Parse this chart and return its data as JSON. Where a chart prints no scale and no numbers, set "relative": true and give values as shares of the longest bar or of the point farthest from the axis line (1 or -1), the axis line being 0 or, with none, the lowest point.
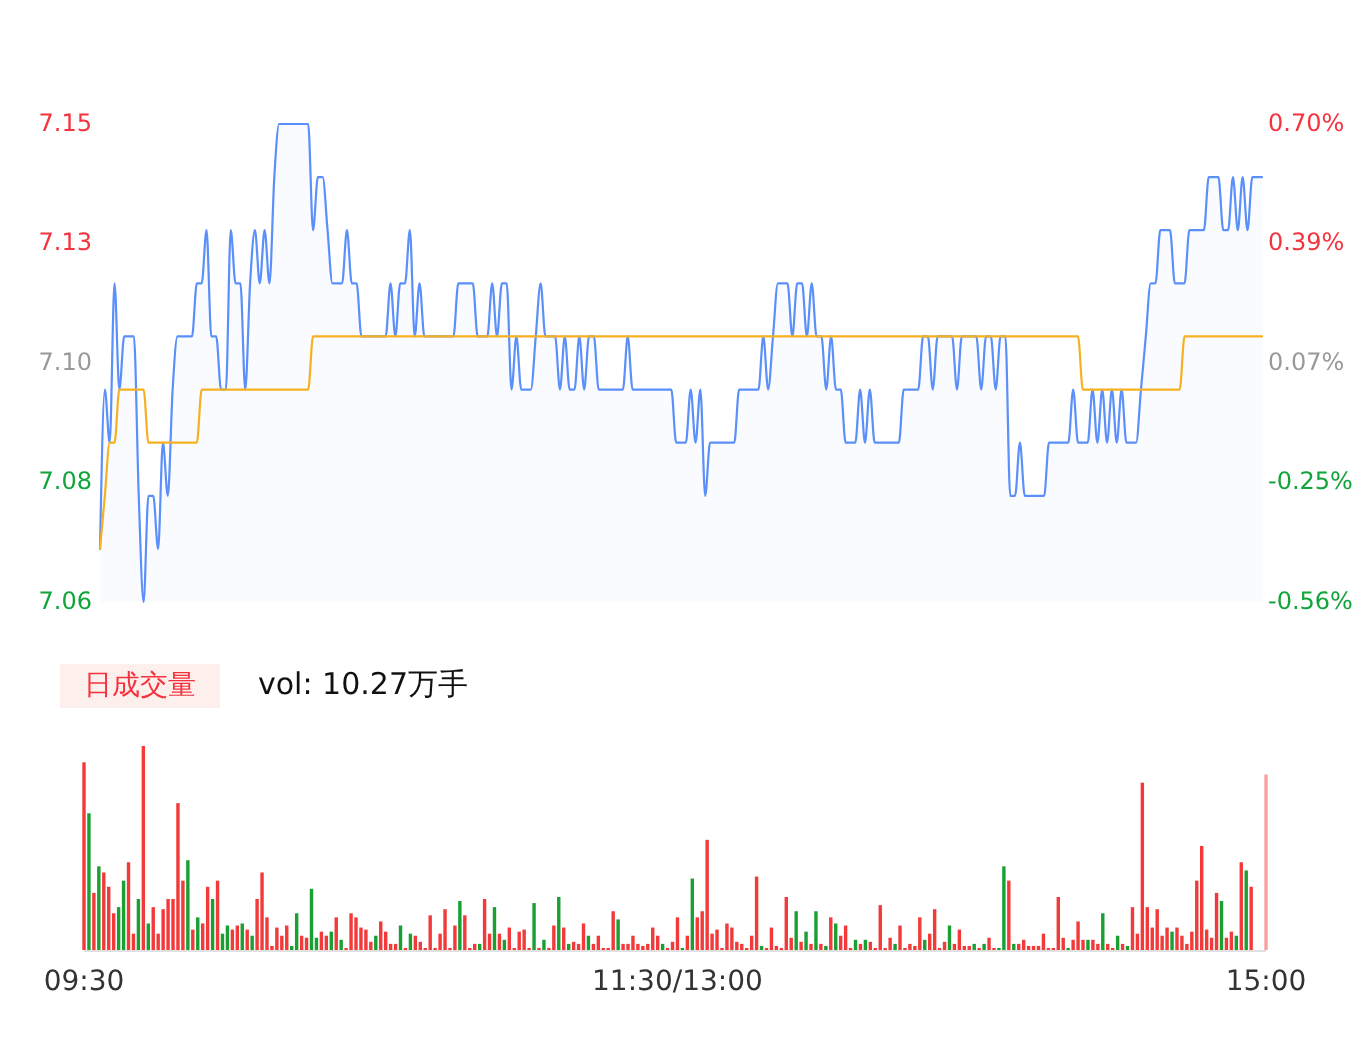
{
  "chart_data": [
    {
      "type": "line",
      "tick_labels": "y",
      "categories": [
        null,
        null,
        null,
        null,
        null,
        null,
        null,
        null,
        null,
        null,
        null,
        null,
        null,
        null,
        null,
        null,
        null,
        null,
        null,
        null,
        null,
        null,
        null,
        null,
        null,
        null,
        null,
        null,
        null,
        null,
        null,
        null,
        null,
        null,
        null,
        null,
        null,
        null,
        null,
        null,
        null,
        null,
        null,
        null,
        null,
        null,
        null,
        null,
        null,
        null,
        null,
        null,
        null,
        null,
        null,
        null,
        null,
        null,
        null,
        null,
        null,
        null,
        null,
        null,
        null,
        null,
        null,
        null,
        null,
        null,
        null,
        null,
        null,
        null,
        null,
        null,
        null,
        null,
        null,
        null,
        null,
        null,
        null,
        null,
        null,
        null,
        null,
        null,
        null,
        null,
        null,
        null,
        null,
        null,
        null,
        null,
        null,
        null,
        null,
        null,
        null,
        null,
        null,
        null,
        null,
        null,
        null,
        null,
        null,
        null,
        null,
        null,
        null,
        null,
        null,
        null,
        null,
        null,
        null,
        null,
        null,
        null,
        null,
        null,
        null,
        null,
        null,
        null,
        null,
        null,
        null,
        null,
        null,
        null,
        null,
        null,
        null,
        null,
        null,
        null,
        null,
        null,
        null,
        null,
        null,
        null,
        null,
        null,
        null,
        null,
        null,
        null,
        null,
        null,
        null,
        null,
        null,
        null,
        null,
        null,
        null,
        null,
        null,
        null,
        null,
        null,
        null,
        null,
        null,
        null,
        null,
        null,
        null,
        null,
        null,
        null,
        null,
        null,
        null,
        null,
        null,
        null,
        null,
        null,
        null,
        null,
        null,
        null,
        null,
        null,
        null,
        null,
        null,
        null,
        null,
        null,
        null,
        null,
        null,
        null,
        null,
        null,
        null,
        null,
        null,
        null,
        null,
        null,
        null,
        null,
        null,
        null,
        null,
        null,
        null,
        null,
        null,
        null,
        null,
        null,
        null,
        null,
        null,
        null,
        null,
        null,
        null,
        null,
        null,
        null,
        null,
        null,
        null,
        null,
        null,
        null,
        null,
        null,
        null,
        null,
        null
      ],
      "ylim": [
        7.06,
        7.15
      ],
      "yticks": [
        7.15,
        {
          "value": 7.1275,
          "label": "7.13"
        },
        {
          "value": 7.105,
          "label": "7.10"
        },
        {
          "value": 7.0825,
          "label": "7.08"
        },
        7.06
      ],
      "y2lim": [
        -0.56,
        0.7
      ],
      "y2ticks": [
        {
          "value": 0.7,
          "label": "0.70%"
        },
        {
          "value": 0.385,
          "label": "0.39%"
        },
        {
          "value": 0.07,
          "label": "0.07%"
        },
        {
          "value": -0.245,
          "label": "-0.25%"
        },
        {
          "value": -0.56,
          "label": "-0.56%"
        }
      ],
      "series": [
        {
          "type": "area",
          "color": "#5b8ff9",
          "values": [
            7.07,
            7.1,
            7.09,
            7.12,
            7.1,
            7.11,
            7.11,
            7.11,
            7.08,
            7.06,
            7.08,
            7.08,
            7.07,
            7.09,
            7.08,
            7.1,
            7.11,
            7.11,
            7.11,
            7.11,
            7.12,
            7.12,
            7.13,
            7.11,
            7.11,
            7.1,
            7.1,
            7.13,
            7.12,
            7.12,
            7.1,
            7.12,
            7.13,
            7.12,
            7.13,
            7.12,
            7.14,
            7.15,
            7.15,
            7.15,
            7.15,
            7.15,
            7.15,
            7.15,
            7.13,
            7.14,
            7.14,
            7.13,
            7.12,
            7.12,
            7.12,
            7.13,
            7.12,
            7.12,
            7.11,
            7.11,
            7.11,
            7.11,
            7.11,
            7.11,
            7.12,
            7.11,
            7.12,
            7.12,
            7.13,
            7.11,
            7.12,
            7.11,
            7.11,
            7.11,
            7.11,
            7.11,
            7.11,
            7.11,
            7.12,
            7.12,
            7.12,
            7.12,
            7.11,
            7.11,
            7.11,
            7.12,
            7.11,
            7.12,
            7.12,
            7.1,
            7.11,
            7.1,
            7.1,
            7.1,
            7.11,
            7.12,
            7.11,
            7.11,
            7.11,
            7.1,
            7.11,
            7.1,
            7.1,
            7.11,
            7.1,
            7.11,
            7.11,
            7.1,
            7.1,
            7.1,
            7.1,
            7.1,
            7.1,
            7.11,
            7.1,
            7.1,
            7.1,
            7.1,
            7.1,
            7.1,
            7.1,
            7.1,
            7.1,
            7.09,
            7.09,
            7.09,
            7.1,
            7.09,
            7.1,
            7.08,
            7.09,
            7.09,
            7.09,
            7.09,
            7.09,
            7.09,
            7.1,
            7.1,
            7.1,
            7.1,
            7.1,
            7.11,
            7.1,
            7.11,
            7.12,
            7.12,
            7.12,
            7.11,
            7.12,
            7.12,
            7.11,
            7.12,
            7.11,
            7.11,
            7.1,
            7.11,
            7.1,
            7.1,
            7.09,
            7.09,
            7.09,
            7.1,
            7.09,
            7.1,
            7.09,
            7.09,
            7.09,
            7.09,
            7.09,
            7.09,
            7.1,
            7.1,
            7.1,
            7.1,
            7.11,
            7.11,
            7.1,
            7.11,
            7.11,
            7.11,
            7.11,
            7.1,
            7.11,
            7.11,
            7.11,
            7.11,
            7.1,
            7.11,
            7.11,
            7.1,
            7.11,
            7.11,
            7.08,
            7.08,
            7.09,
            7.08,
            7.08,
            7.08,
            7.08,
            7.08,
            7.09,
            7.09,
            7.09,
            7.09,
            7.09,
            7.1,
            7.09,
            7.09,
            7.09,
            7.1,
            7.09,
            7.1,
            7.09,
            7.1,
            7.09,
            7.1,
            7.09,
            7.09,
            7.09,
            7.1,
            7.11,
            7.12,
            7.12,
            7.13,
            7.13,
            7.13,
            7.12,
            7.12,
            7.12,
            7.13,
            7.13,
            7.13,
            7.13,
            7.14,
            7.14,
            7.14,
            7.13,
            7.13,
            7.14,
            7.13,
            7.14,
            7.13,
            7.14,
            7.14,
            7.14
          ]
        },
        {
          "type": "line",
          "color": "#f5b121",
          "values": [
            7.07,
            7.08,
            7.09,
            7.09,
            7.1,
            7.1,
            7.1,
            7.1,
            7.1,
            7.1,
            7.09,
            7.09,
            7.09,
            7.09,
            7.09,
            7.09,
            7.09,
            7.09,
            7.09,
            7.09,
            7.09,
            7.1,
            7.1,
            7.1,
            7.1,
            7.1,
            7.1,
            7.1,
            7.1,
            7.1,
            7.1,
            7.1,
            7.1,
            7.1,
            7.1,
            7.1,
            7.1,
            7.1,
            7.1,
            7.1,
            7.1,
            7.1,
            7.1,
            7.1,
            7.11,
            7.11,
            7.11,
            7.11,
            7.11,
            7.11,
            7.11,
            7.11,
            7.11,
            7.11,
            7.11,
            7.11,
            7.11,
            7.11,
            7.11,
            7.11,
            7.11,
            7.11,
            7.11,
            7.11,
            7.11,
            7.11,
            7.11,
            7.11,
            7.11,
            7.11,
            7.11,
            7.11,
            7.11,
            7.11,
            7.11,
            7.11,
            7.11,
            7.11,
            7.11,
            7.11,
            7.11,
            7.11,
            7.11,
            7.11,
            7.11,
            7.11,
            7.11,
            7.11,
            7.11,
            7.11,
            7.11,
            7.11,
            7.11,
            7.11,
            7.11,
            7.11,
            7.11,
            7.11,
            7.11,
            7.11,
            7.11,
            7.11,
            7.11,
            7.11,
            7.11,
            7.11,
            7.11,
            7.11,
            7.11,
            7.11,
            7.11,
            7.11,
            7.11,
            7.11,
            7.11,
            7.11,
            7.11,
            7.11,
            7.11,
            7.11,
            7.11,
            7.11,
            7.11,
            7.11,
            7.11,
            7.11,
            7.11,
            7.11,
            7.11,
            7.11,
            7.11,
            7.11,
            7.11,
            7.11,
            7.11,
            7.11,
            7.11,
            7.11,
            7.11,
            7.11,
            7.11,
            7.11,
            7.11,
            7.11,
            7.11,
            7.11,
            7.11,
            7.11,
            7.11,
            7.11,
            7.11,
            7.11,
            7.11,
            7.11,
            7.11,
            7.11,
            7.11,
            7.11,
            7.11,
            7.11,
            7.11,
            7.11,
            7.11,
            7.11,
            7.11,
            7.11,
            7.11,
            7.11,
            7.11,
            7.11,
            7.11,
            7.11,
            7.11,
            7.11,
            7.11,
            7.11,
            7.11,
            7.11,
            7.11,
            7.11,
            7.11,
            7.11,
            7.11,
            7.11,
            7.11,
            7.11,
            7.11,
            7.11,
            7.11,
            7.11,
            7.11,
            7.11,
            7.11,
            7.11,
            7.11,
            7.11,
            7.11,
            7.11,
            7.11,
            7.11,
            7.11,
            7.11,
            7.11,
            7.1,
            7.1,
            7.1,
            7.1,
            7.1,
            7.1,
            7.1,
            7.1,
            7.1,
            7.1,
            7.1,
            7.1,
            7.1,
            7.1,
            7.1,
            7.1,
            7.1,
            7.1,
            7.1,
            7.1,
            7.1,
            7.11,
            7.11,
            7.11,
            7.11,
            7.11,
            7.11,
            7.11,
            7.11,
            7.11,
            7.11,
            7.11,
            7.11,
            7.11,
            7.11,
            7.11,
            7.11,
            7.11
          ]
        }
      ]
    },
    {
      "type": "bar",
      "title": "日成交量",
      "subtitle": "vol: 10.27万手",
      "relative": true,
      "categories": [
        "09:30",
        null,
        null,
        null,
        null,
        null,
        null,
        null,
        null,
        null,
        null,
        null,
        null,
        null,
        null,
        null,
        null,
        null,
        null,
        null,
        null,
        null,
        null,
        null,
        null,
        null,
        null,
        null,
        null,
        null,
        null,
        null,
        null,
        null,
        null,
        null,
        null,
        null,
        null,
        null,
        null,
        null,
        null,
        null,
        null,
        null,
        null,
        null,
        null,
        null,
        null,
        null,
        null,
        null,
        null,
        null,
        null,
        null,
        null,
        null,
        null,
        null,
        null,
        null,
        null,
        null,
        null,
        null,
        null,
        null,
        null,
        null,
        null,
        null,
        null,
        null,
        null,
        null,
        null,
        null,
        null,
        null,
        null,
        null,
        null,
        null,
        null,
        null,
        null,
        null,
        null,
        null,
        null,
        null,
        null,
        null,
        null,
        null,
        null,
        null,
        null,
        null,
        null,
        null,
        null,
        null,
        null,
        null,
        null,
        null,
        null,
        null,
        null,
        null,
        null,
        null,
        null,
        null,
        null,
        null,
        "11:30/13:00",
        null,
        null,
        null,
        null,
        null,
        null,
        null,
        null,
        null,
        null,
        null,
        null,
        null,
        null,
        null,
        null,
        null,
        null,
        null,
        null,
        null,
        null,
        null,
        null,
        null,
        null,
        null,
        null,
        null,
        null,
        null,
        null,
        null,
        null,
        null,
        null,
        null,
        null,
        null,
        null,
        null,
        null,
        null,
        null,
        null,
        null,
        null,
        null,
        null,
        null,
        null,
        null,
        null,
        null,
        null,
        null,
        null,
        null,
        null,
        null,
        null,
        null,
        null,
        null,
        null,
        null,
        null,
        null,
        null,
        null,
        null,
        null,
        null,
        null,
        null,
        null,
        null,
        null,
        null,
        null,
        null,
        null,
        null,
        null,
        null,
        null,
        null,
        null,
        null,
        null,
        null,
        null,
        null,
        null,
        null,
        null,
        null,
        null,
        null,
        null,
        null,
        null,
        null,
        null,
        null,
        null,
        null,
        null,
        null,
        null,
        null,
        null,
        null,
        null,
        null,
        null,
        null,
        null,
        "15:00"
      ],
      "values": [
        0.92,
        0.67,
        0.28,
        0.41,
        0.38,
        0.31,
        0.18,
        0.21,
        0.34,
        0.43,
        0.08,
        0.25,
        1,
        0.13,
        0.21,
        0.08,
        0.2,
        0.25,
        0.25,
        0.72,
        0.34,
        0.44,
        0.1,
        0.16,
        0.13,
        0.31,
        0.25,
        0.34,
        0.08,
        0.12,
        0.1,
        0.12,
        0.13,
        0.1,
        0.07,
        0.25,
        0.38,
        0.16,
        0.02,
        0.11,
        0.07,
        0.12,
        0.02,
        0.18,
        0.07,
        0.06,
        0.3,
        0.06,
        0.09,
        0.07,
        0.09,
        0.16,
        0.05,
        0.01,
        0.18,
        0.16,
        0.11,
        0.1,
        0.04,
        0.07,
        0.14,
        0.09,
        0.03,
        0.03,
        0.12,
        0.01,
        0.08,
        0.07,
        0.04,
        0.01,
        0.17,
        0.01,
        0.08,
        0.2,
        0.01,
        0.12,
        0.24,
        0.17,
        0.01,
        0.03,
        0.03,
        0.25,
        0.08,
        0.21,
        0.08,
        0.05,
        0.11,
        0.01,
        0.09,
        0.1,
        0.01,
        0.23,
        0.01,
        0.05,
        0.01,
        0.12,
        0.26,
        0.11,
        0.03,
        0.04,
        0.03,
        0.13,
        0.07,
        0.03,
        0.07,
        0.01,
        0.01,
        0.19,
        0.15,
        0.03,
        0.03,
        0.07,
        0.03,
        0.02,
        0.03,
        0.11,
        0.07,
        0.03,
        0.01,
        0.04,
        0.16,
        0.01,
        0.07,
        0.35,
        0.16,
        0.19,
        0.54,
        0.08,
        0.1,
        0.01,
        0.13,
        0.11,
        0.04,
        0.03,
        0.01,
        0.07,
        0.36,
        0.02,
        0.01,
        0.11,
        0.02,
        0.01,
        0.26,
        0.06,
        0.19,
        0.04,
        0.09,
        0.03,
        0.19,
        0.03,
        0.02,
        0.16,
        0.13,
        0.07,
        0.12,
        0.01,
        0.05,
        0.03,
        0.05,
        0.04,
        0.01,
        0.22,
        0.01,
        0.06,
        0.03,
        0.12,
        0.01,
        0.03,
        0.02,
        0.16,
        0.05,
        0.08,
        0.2,
        0.01,
        0.04,
        0.12,
        0.03,
        0.1,
        0.02,
        0.02,
        0.03,
        0.01,
        0.03,
        0.06,
        0.01,
        0.01,
        0.41,
        0.34,
        0.03,
        0.03,
        0.05,
        0.02,
        0.02,
        0.02,
        0.08,
        0.01,
        0.01,
        0.26,
        0.06,
        0.01,
        0.05,
        0.14,
        0.05,
        0.05,
        0.05,
        0.03,
        0.18,
        0.03,
        0.01,
        0.07,
        0.03,
        0.02,
        0.21,
        0.08,
        0.82,
        0.21,
        0.11,
        0.2,
        0.07,
        0.11,
        0.09,
        0.11,
        0.07,
        0.03,
        0.09,
        0.34,
        0.51,
        0.1,
        0.06,
        0.28,
        0.24,
        0.06,
        0.09,
        0.07,
        0.43,
        0.39,
        0.31,
        0,
        0,
        0.86
      ],
      "colors": [
        "#f23a3a",
        "#1a9f33",
        "#f23a3a",
        "#1a9f33",
        "#f23a3a",
        "#f23a3a",
        "#f23a3a",
        "#1a9f33",
        "#1a9f33",
        "#f23a3a",
        "#f23a3a",
        "#1a9f33",
        "#f23a3a",
        "#1a9f33",
        "#f23a3a",
        "#f23a3a",
        "#f23a3a",
        "#f23a3a",
        "#f23a3a",
        "#f23a3a",
        "#f23a3a",
        "#1a9f33",
        "#f23a3a",
        "#1a9f33",
        "#f23a3a",
        "#f23a3a",
        "#1a9f33",
        "#f23a3a",
        "#1a9f33",
        "#1a9f33",
        "#f23a3a",
        "#f23a3a",
        "#1a9f33",
        "#f23a3a",
        "#1a9f33",
        "#f23a3a",
        "#f23a3a",
        "#f23a3a",
        "#f23a3a",
        "#f23a3a",
        "#f23a3a",
        "#f23a3a",
        "#1a9f33",
        "#1a9f33",
        "#f23a3a",
        "#f23a3a",
        "#1a9f33",
        "#1a9f33",
        "#f23a3a",
        "#f23a3a",
        "#1a9f33",
        "#f23a3a",
        "#1a9f33",
        "#f23a3a",
        "#f23a3a",
        "#f23a3a",
        "#f23a3a",
        "#f23a3a",
        "#f23a3a",
        "#1a9f33",
        "#f23a3a",
        "#f23a3a",
        "#f23a3a",
        "#f23a3a",
        "#1a9f33",
        "#f23a3a",
        "#1a9f33",
        "#f23a3a",
        "#f23a3a",
        "#f23a3a",
        "#f23a3a",
        "#f23a3a",
        "#f23a3a",
        "#f23a3a",
        "#f23a3a",
        "#f23a3a",
        "#1a9f33",
        "#f23a3a",
        "#f23a3a",
        "#f23a3a",
        "#1a9f33",
        "#f23a3a",
        "#f23a3a",
        "#1a9f33",
        "#f23a3a",
        "#1a9f33",
        "#f23a3a",
        "#f23a3a",
        "#f23a3a",
        "#f23a3a",
        "#f23a3a",
        "#1a9f33",
        "#f23a3a",
        "#1a9f33",
        "#f23a3a",
        "#f23a3a",
        "#1a9f33",
        "#f23a3a",
        "#1a9f33",
        "#f23a3a",
        "#f23a3a",
        "#f23a3a",
        "#1a9f33",
        "#f23a3a",
        "#f23a3a",
        "#f23a3a",
        "#f23a3a",
        "#f23a3a",
        "#1a9f33",
        "#f23a3a",
        "#f23a3a",
        "#f23a3a",
        "#f23a3a",
        "#f23a3a",
        "#f23a3a",
        "#f23a3a",
        "#f23a3a",
        "#1a9f33",
        "#f23a3a",
        "#f23a3a",
        "#f23a3a",
        "#1a9f33",
        "#f23a3a",
        "#1a9f33",
        "#f23a3a",
        "#f23a3a",
        "#f23a3a",
        "#f23a3a",
        "#f23a3a",
        "#f23a3a",
        "#f23a3a",
        "#f23a3a",
        "#f23a3a",
        "#f23a3a",
        "#f23a3a",
        "#f23a3a",
        "#f23a3a",
        "#1a9f33",
        "#f23a3a",
        "#f23a3a",
        "#f23a3a",
        "#f23a3a",
        "#f23a3a",
        "#f23a3a",
        "#1a9f33",
        "#f23a3a",
        "#1a9f33",
        "#f23a3a",
        "#1a9f33",
        "#f23a3a",
        "#1a9f33",
        "#f23a3a",
        "#1a9f33",
        "#f23a3a",
        "#f23a3a",
        "#f23a3a",
        "#1a9f33",
        "#f23a3a",
        "#1a9f33",
        "#f23a3a",
        "#f23a3a",
        "#f23a3a",
        "#f23a3a",
        "#f23a3a",
        "#1a9f33",
        "#f23a3a",
        "#f23a3a",
        "#f23a3a",
        "#f23a3a",
        "#f23a3a",
        "#1a9f33",
        "#f23a3a",
        "#f23a3a",
        "#f23a3a",
        "#f23a3a",
        "#1a9f33",
        "#f23a3a",
        "#f23a3a",
        "#f23a3a",
        "#f23a3a",
        "#1a9f33",
        "#f23a3a",
        "#1a9f33",
        "#f23a3a",
        "#f23a3a",
        "#1a9f33",
        "#1a9f33",
        "#f23a3a",
        "#1a9f33",
        "#f23a3a",
        "#f23a3a",
        "#f23a3a",
        "#f23a3a",
        "#f23a3a",
        "#f23a3a",
        "#f23a3a",
        "#f23a3a",
        "#f23a3a",
        "#f23a3a",
        "#1a9f33",
        "#f23a3a",
        "#f23a3a",
        "#f23a3a",
        "#1a9f33",
        "#f23a3a",
        "#f23a3a",
        "#1a9f33",
        "#f23a3a",
        "#f23a3a",
        "#1a9f33",
        "#f23a3a",
        "#1a9f33",
        "#f23a3a",
        "#f23a3a",
        "#f23a3a",
        "#f23a3a",
        "#f23a3a",
        "#f23a3a",
        "#f23a3a",
        "#f23a3a",
        "#1a9f33",
        "#f23a3a",
        "#f23a3a",
        "#f23a3a",
        "#f23a3a",
        "#f23a3a",
        "#f23a3a",
        "#f23a3a",
        "#f23a3a",
        "#f23a3a",
        "#1a9f33",
        "#f23a3a",
        "#f23a3a",
        "#1a9f33",
        "#f23a3a",
        "#1a9f33",
        "#f23a3a",
        "#f23a3a",
        "#f23a3a",
        "#f7a1a1"
      ]
    }
  ]
}
